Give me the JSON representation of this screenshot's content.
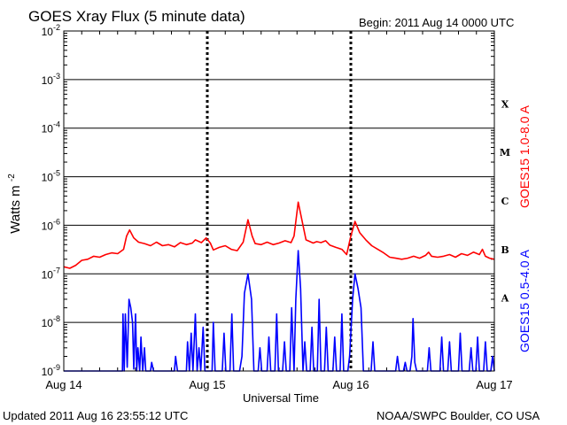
{
  "header": {
    "title": "GOES Xray Flux (5 minute data)",
    "begin": "Begin:  2011 Aug 14 0000 UTC"
  },
  "footer": {
    "updated": "Updated 2011 Aug 16 23:55:12 UTC",
    "credit": "NOAA/SWPC Boulder, CO USA"
  },
  "chart_data": {
    "type": "line",
    "title": "GOES Xray Flux (5 minute data)",
    "xlabel": "Universal Time",
    "ylabel_base": "Watts m",
    "ylabel_exp": "-2",
    "yscale": "log",
    "ylim": [
      1e-09,
      0.01
    ],
    "xlim": [
      0,
      72
    ],
    "x_unit": "hours since 2011 Aug 14 0000 UTC",
    "x_ticks": [
      {
        "x": 0,
        "label": "Aug 14"
      },
      {
        "x": 24,
        "label": "Aug 15"
      },
      {
        "x": 48,
        "label": "Aug 16"
      },
      {
        "x": 72,
        "label": "Aug 17"
      }
    ],
    "y_ticks": [
      {
        "exp": -9,
        "base": "10",
        "sup": "-9"
      },
      {
        "exp": -8,
        "base": "10",
        "sup": "-8"
      },
      {
        "exp": -7,
        "base": "10",
        "sup": "-7"
      },
      {
        "exp": -6,
        "base": "10",
        "sup": "-6"
      },
      {
        "exp": -5,
        "base": "10",
        "sup": "-5"
      },
      {
        "exp": -4,
        "base": "10",
        "sup": "-4"
      },
      {
        "exp": -3,
        "base": "10",
        "sup": "-3"
      },
      {
        "exp": -2,
        "base": "10",
        "sup": "-2"
      }
    ],
    "flare_classes": [
      {
        "label": "A",
        "exp": -7.5
      },
      {
        "label": "B",
        "exp": -6.5
      },
      {
        "label": "C",
        "exp": -5.5
      },
      {
        "label": "M",
        "exp": -4.5
      },
      {
        "label": "X",
        "exp": -3.5
      }
    ],
    "grid": true,
    "series": [
      {
        "name": "GOES15 1.0-8.0 A",
        "color": "#ff0000",
        "points": [
          [
            0,
            1.4e-07
          ],
          [
            1,
            1.3e-07
          ],
          [
            2,
            1.5e-07
          ],
          [
            3,
            1.9e-07
          ],
          [
            4,
            2e-07
          ],
          [
            5,
            2.3e-07
          ],
          [
            6,
            2.2e-07
          ],
          [
            7,
            2.5e-07
          ],
          [
            8,
            2.7e-07
          ],
          [
            9,
            2.6e-07
          ],
          [
            10,
            3.2e-07
          ],
          [
            10.5,
            6e-07
          ],
          [
            11,
            8e-07
          ],
          [
            11.7,
            5.5e-07
          ],
          [
            12.5,
            4.5e-07
          ],
          [
            13.5,
            4.2e-07
          ],
          [
            14.5,
            3.8e-07
          ],
          [
            15.5,
            4.5e-07
          ],
          [
            16.5,
            3.8e-07
          ],
          [
            17.5,
            4e-07
          ],
          [
            18.5,
            3.6e-07
          ],
          [
            19.5,
            4.4e-07
          ],
          [
            20.5,
            4e-07
          ],
          [
            21.5,
            4.3e-07
          ],
          [
            22,
            5e-07
          ],
          [
            23,
            4.4e-07
          ],
          [
            23.8,
            5.5e-07
          ],
          [
            24.5,
            4.3e-07
          ],
          [
            25,
            3.1e-07
          ],
          [
            26,
            3.5e-07
          ],
          [
            27,
            3.8e-07
          ],
          [
            28,
            3.2e-07
          ],
          [
            29,
            3e-07
          ],
          [
            30,
            4.5e-07
          ],
          [
            30.8,
            1.3e-06
          ],
          [
            31.5,
            6e-07
          ],
          [
            32,
            4.2e-07
          ],
          [
            33,
            4e-07
          ],
          [
            34,
            4.5e-07
          ],
          [
            35,
            4e-07
          ],
          [
            36,
            4.3e-07
          ],
          [
            37,
            4.8e-07
          ],
          [
            38,
            4.4e-07
          ],
          [
            38.5,
            6e-07
          ],
          [
            39.2,
            3e-06
          ],
          [
            40,
            1e-06
          ],
          [
            40.5,
            5e-07
          ],
          [
            41,
            4.7e-07
          ],
          [
            41.7,
            4.3e-07
          ],
          [
            42.3,
            4.6e-07
          ],
          [
            43,
            4.4e-07
          ],
          [
            43.8,
            4.8e-07
          ],
          [
            44.5,
            3.9e-07
          ],
          [
            45.5,
            3.5e-07
          ],
          [
            46.5,
            3.2e-07
          ],
          [
            47.3,
            2.5e-07
          ],
          [
            48,
            6e-07
          ],
          [
            48.7,
            1.2e-06
          ],
          [
            49.5,
            7e-07
          ],
          [
            50.5,
            5e-07
          ],
          [
            51.5,
            3.8e-07
          ],
          [
            52.5,
            3.2e-07
          ],
          [
            53.5,
            2.7e-07
          ],
          [
            54.5,
            2.2e-07
          ],
          [
            55.5,
            2.1e-07
          ],
          [
            56.5,
            2e-07
          ],
          [
            57.5,
            2.1e-07
          ],
          [
            58.5,
            2.3e-07
          ],
          [
            59.5,
            2.1e-07
          ],
          [
            60.5,
            2.4e-07
          ],
          [
            61,
            2.8e-07
          ],
          [
            61.5,
            2.3e-07
          ],
          [
            62.5,
            2.2e-07
          ],
          [
            63.5,
            2.3e-07
          ],
          [
            64.5,
            2.5e-07
          ],
          [
            65.5,
            2.2e-07
          ],
          [
            66.5,
            2.6e-07
          ],
          [
            67.5,
            2.4e-07
          ],
          [
            68.5,
            2.8e-07
          ],
          [
            69.5,
            2.5e-07
          ],
          [
            70,
            3.2e-07
          ],
          [
            70.5,
            2.3e-07
          ],
          [
            71.2,
            2.1e-07
          ],
          [
            72,
            2e-07
          ]
        ]
      },
      {
        "name": "GOES15 0.5-4.0 A",
        "color": "#0000ff",
        "points": [
          [
            0,
            1e-09
          ],
          [
            9.8,
            1e-09
          ],
          [
            9.9,
            1.5e-08
          ],
          [
            10.1,
            1e-09
          ],
          [
            10.3,
            1.5e-08
          ],
          [
            10.6,
            1.2e-09
          ],
          [
            10.9,
            3e-08
          ],
          [
            11.2,
            2e-08
          ],
          [
            11.5,
            1e-08
          ],
          [
            11.7,
            1.1e-09
          ],
          [
            12,
            1.5e-08
          ],
          [
            12.2,
            1e-09
          ],
          [
            12.4,
            3e-09
          ],
          [
            12.7,
            1e-09
          ],
          [
            12.9,
            5e-09
          ],
          [
            13.2,
            1e-09
          ],
          [
            13.5,
            3e-09
          ],
          [
            13.7,
            1e-09
          ],
          [
            14.5,
            1e-09
          ],
          [
            14.7,
            1.5e-09
          ],
          [
            15,
            1e-09
          ],
          [
            18.5,
            1e-09
          ],
          [
            18.7,
            2e-09
          ],
          [
            19,
            1e-09
          ],
          [
            20.5,
            1e-09
          ],
          [
            20.7,
            4e-09
          ],
          [
            21,
            1e-09
          ],
          [
            21.3,
            6e-09
          ],
          [
            21.6,
            1e-09
          ],
          [
            22,
            1.5e-08
          ],
          [
            22.3,
            1e-09
          ],
          [
            22.6,
            3e-09
          ],
          [
            22.9,
            1e-09
          ],
          [
            23.3,
            8e-09
          ],
          [
            23.6,
            1e-09
          ],
          [
            24.8,
            1e-09
          ],
          [
            25,
            1e-08
          ],
          [
            25.3,
            1e-09
          ],
          [
            26.5,
            1e-09
          ],
          [
            26.8,
            6e-09
          ],
          [
            27.1,
            1e-09
          ],
          [
            27.8,
            1e-09
          ],
          [
            28.1,
            1.5e-08
          ],
          [
            28.4,
            1e-09
          ],
          [
            29.4,
            1e-09
          ],
          [
            29.8,
            2e-09
          ],
          [
            30.2,
            4e-08
          ],
          [
            30.8,
            1e-07
          ],
          [
            31.4,
            3e-08
          ],
          [
            31.8,
            1e-09
          ],
          [
            32.5,
            1e-09
          ],
          [
            32.8,
            3e-09
          ],
          [
            33.1,
            1e-09
          ],
          [
            34,
            1e-09
          ],
          [
            34.3,
            5e-09
          ],
          [
            34.6,
            1e-09
          ],
          [
            35.3,
            1e-09
          ],
          [
            35.6,
            1.5e-08
          ],
          [
            35.9,
            1e-09
          ],
          [
            36.6,
            1e-09
          ],
          [
            36.9,
            4e-09
          ],
          [
            37.2,
            1e-09
          ],
          [
            37.8,
            1e-09
          ],
          [
            38.1,
            2e-08
          ],
          [
            38.5,
            1e-09
          ],
          [
            38.8,
            3e-08
          ],
          [
            39.2,
            3e-07
          ],
          [
            39.6,
            5e-08
          ],
          [
            40,
            1e-09
          ],
          [
            40.3,
            4e-09
          ],
          [
            40.6,
            1e-09
          ],
          [
            41.2,
            1e-09
          ],
          [
            41.5,
            8e-09
          ],
          [
            41.8,
            1e-09
          ],
          [
            42.4,
            1e-09
          ],
          [
            42.7,
            3e-08
          ],
          [
            43,
            1e-09
          ],
          [
            43.6,
            1e-09
          ],
          [
            43.9,
            8e-09
          ],
          [
            44.2,
            1e-09
          ],
          [
            45,
            1e-09
          ],
          [
            45.3,
            5e-09
          ],
          [
            45.6,
            1e-09
          ],
          [
            46.2,
            1e-09
          ],
          [
            46.5,
            1.5e-08
          ],
          [
            46.8,
            1e-09
          ],
          [
            47.5,
            1e-09
          ],
          [
            47.8,
            2e-09
          ],
          [
            48.3,
            3e-08
          ],
          [
            48.7,
            1e-07
          ],
          [
            49.2,
            5e-08
          ],
          [
            49.7,
            2e-08
          ],
          [
            50.1,
            1e-09
          ],
          [
            51.4,
            1e-09
          ],
          [
            51.7,
            4e-09
          ],
          [
            52,
            1e-09
          ],
          [
            55.5,
            1e-09
          ],
          [
            55.8,
            2e-09
          ],
          [
            56.1,
            1e-09
          ],
          [
            56.8,
            1e-09
          ],
          [
            57.1,
            1.5e-09
          ],
          [
            57.4,
            1e-09
          ],
          [
            57.9,
            1e-09
          ],
          [
            58.2,
            2e-09
          ],
          [
            58.4,
            1.2e-08
          ],
          [
            58.7,
            1.5e-09
          ],
          [
            59,
            1e-09
          ],
          [
            60.8,
            1e-09
          ],
          [
            61.1,
            3e-09
          ],
          [
            61.4,
            1e-09
          ],
          [
            62.9,
            1e-09
          ],
          [
            63.2,
            5e-09
          ],
          [
            63.5,
            1e-09
          ],
          [
            64.2,
            1e-09
          ],
          [
            64.5,
            4e-09
          ],
          [
            64.8,
            1e-09
          ],
          [
            66,
            1e-09
          ],
          [
            66.3,
            6e-09
          ],
          [
            66.6,
            1e-09
          ],
          [
            67.8,
            1e-09
          ],
          [
            68.1,
            3e-09
          ],
          [
            68.4,
            1e-09
          ],
          [
            68.9,
            1e-09
          ],
          [
            69.2,
            5e-09
          ],
          [
            69.5,
            1e-09
          ],
          [
            70.2,
            1e-09
          ],
          [
            70.5,
            4e-09
          ],
          [
            70.8,
            1e-09
          ],
          [
            71.4,
            1e-09
          ],
          [
            71.7,
            2e-09
          ],
          [
            72,
            1e-09
          ]
        ]
      }
    ]
  }
}
